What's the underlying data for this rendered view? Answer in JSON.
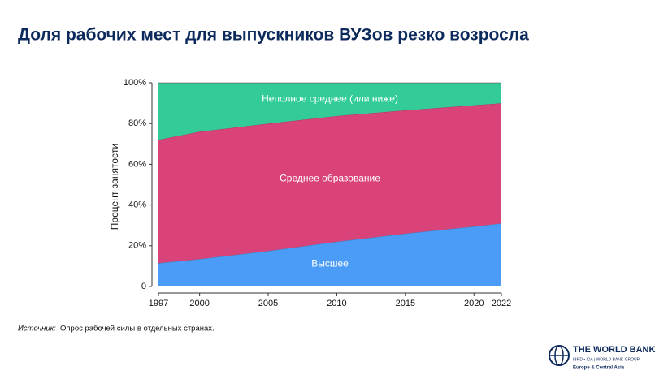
{
  "chart_data": {
    "type": "stacked_area",
    "title": "Доля рабочих мест для выпускников ВУЗов резко возросла",
    "y_label": "Процент занятости",
    "x": [
      1997,
      2000,
      2005,
      2010,
      2015,
      2020,
      2022
    ],
    "series": [
      {
        "name": "Высшее",
        "color": "#4a9cf7",
        "values": [
          11.5,
          13.5,
          17.5,
          22,
          26,
          29.5,
          31
        ]
      },
      {
        "name": "Среднее образование",
        "color": "#d9437a",
        "values": [
          60.5,
          62.5,
          62.5,
          61.7,
          60.5,
          59.5,
          59
        ]
      },
      {
        "name": "Неполное среднее (или ниже)",
        "color": "#33cc99",
        "values": [
          28,
          24,
          20,
          16.3,
          13.5,
          11,
          10
        ]
      }
    ],
    "xlim": [
      1997,
      2022
    ],
    "xticks": [
      1997,
      2000,
      2005,
      2010,
      2015,
      2020,
      2022
    ],
    "ylim": [
      0,
      100
    ],
    "yticks": [
      0,
      {
        "value": 20,
        "label": "20%"
      },
      {
        "value": 40,
        "label": "40%"
      },
      {
        "value": 60,
        "label": "60%"
      },
      {
        "value": 80,
        "label": "80%"
      },
      {
        "value": 100,
        "label": "100%"
      }
    ]
  },
  "source": {
    "label": "Источник:",
    "text": "Опрос рабочей силы в отдельных странах."
  },
  "logo": {
    "name": "THE WORLD BANK",
    "group": "IBRD • IDA | WORLD BANK GROUP",
    "region": "Europe & Central Asia"
  }
}
